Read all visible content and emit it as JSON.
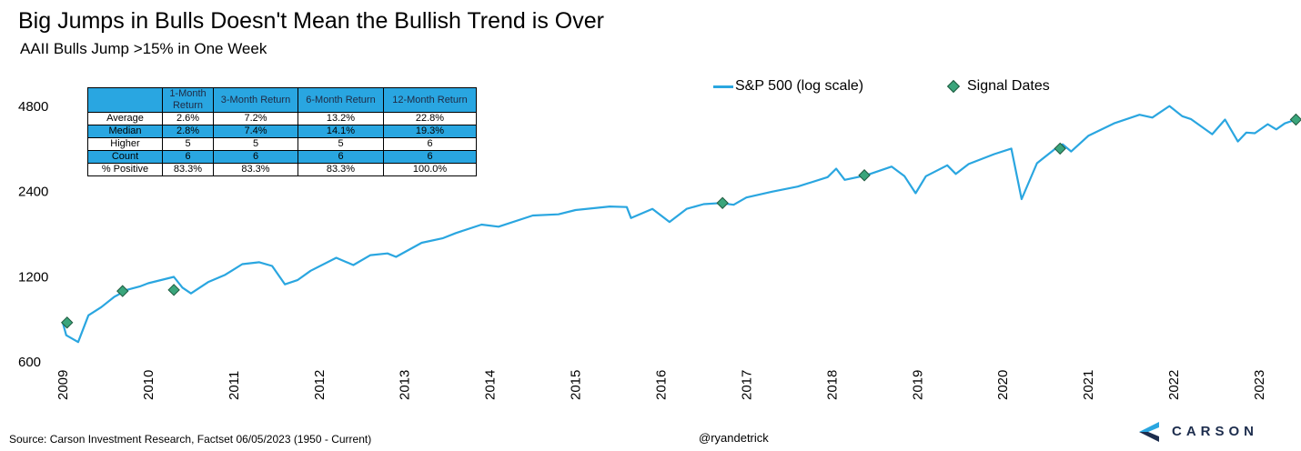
{
  "header": {
    "title": "Big Jumps in Bulls Doesn't Mean the Bullish Trend is Over",
    "subtitle": "AAII Bulls Jump >15% in One Week"
  },
  "legend": {
    "line_label": "S&P 500 (log scale)",
    "marker_label": "Signal Dates"
  },
  "stats_table": {
    "columns": [
      "",
      "1-Month Return",
      "3-Month Return",
      "6-Month Return",
      "12-Month Return"
    ],
    "rows": [
      {
        "label": "Average",
        "values": [
          "2.6%",
          "7.2%",
          "13.2%",
          "22.8%"
        ]
      },
      {
        "label": "Median",
        "values": [
          "2.8%",
          "7.4%",
          "14.1%",
          "19.3%"
        ]
      },
      {
        "label": "Higher",
        "values": [
          "5",
          "5",
          "5",
          "6"
        ]
      },
      {
        "label": "Count",
        "values": [
          "6",
          "6",
          "6",
          "6"
        ]
      },
      {
        "label": "% Positive",
        "values": [
          "83.3%",
          "83.3%",
          "83.3%",
          "100.0%"
        ]
      }
    ]
  },
  "footer": {
    "source": "Source: Carson Investment Research, Factset 06/05/2023 (1950 - Current)",
    "handle": "@ryandetrick",
    "logo_text": "CARSON"
  },
  "colors": {
    "line": "#2aa6e0",
    "marker": "#3aa57b",
    "table_header": "#29a6e1",
    "logo": "#1d2d4d"
  },
  "chart_data": {
    "type": "line",
    "y_scale": "log",
    "ylim": [
      600,
      5000
    ],
    "y_ticks": [
      4800,
      2400,
      1200,
      600
    ],
    "x_ticks": [
      "2009",
      "2010",
      "2011",
      "2012",
      "2013",
      "2014",
      "2015",
      "2016",
      "2017",
      "2018",
      "2019",
      "2020",
      "2021",
      "2022",
      "2023"
    ],
    "xlim": [
      2009.0,
      2023.5
    ],
    "series": [
      {
        "name": "S&P 500 (log scale)",
        "points": [
          [
            2009.0,
            820
          ],
          [
            2009.04,
            740
          ],
          [
            2009.18,
            700
          ],
          [
            2009.3,
            870
          ],
          [
            2009.45,
            930
          ],
          [
            2009.6,
            1010
          ],
          [
            2009.75,
            1070
          ],
          [
            2009.9,
            1100
          ],
          [
            2010.0,
            1130
          ],
          [
            2010.3,
            1190
          ],
          [
            2010.4,
            1090
          ],
          [
            2010.5,
            1040
          ],
          [
            2010.7,
            1140
          ],
          [
            2010.9,
            1210
          ],
          [
            2011.1,
            1320
          ],
          [
            2011.3,
            1340
          ],
          [
            2011.45,
            1300
          ],
          [
            2011.6,
            1120
          ],
          [
            2011.75,
            1160
          ],
          [
            2011.9,
            1250
          ],
          [
            2012.2,
            1390
          ],
          [
            2012.4,
            1310
          ],
          [
            2012.6,
            1420
          ],
          [
            2012.8,
            1440
          ],
          [
            2012.9,
            1400
          ],
          [
            2013.2,
            1570
          ],
          [
            2013.45,
            1630
          ],
          [
            2013.6,
            1700
          ],
          [
            2013.9,
            1820
          ],
          [
            2014.1,
            1790
          ],
          [
            2014.5,
            1960
          ],
          [
            2014.8,
            1980
          ],
          [
            2015.0,
            2050
          ],
          [
            2015.4,
            2110
          ],
          [
            2015.6,
            2100
          ],
          [
            2015.65,
            1920
          ],
          [
            2015.9,
            2070
          ],
          [
            2016.1,
            1860
          ],
          [
            2016.3,
            2070
          ],
          [
            2016.5,
            2150
          ],
          [
            2016.7,
            2170
          ],
          [
            2016.85,
            2140
          ],
          [
            2017.0,
            2270
          ],
          [
            2017.3,
            2380
          ],
          [
            2017.6,
            2480
          ],
          [
            2017.95,
            2680
          ],
          [
            2018.05,
            2870
          ],
          [
            2018.15,
            2620
          ],
          [
            2018.4,
            2720
          ],
          [
            2018.7,
            2920
          ],
          [
            2018.85,
            2700
          ],
          [
            2018.98,
            2350
          ],
          [
            2019.1,
            2700
          ],
          [
            2019.35,
            2950
          ],
          [
            2019.45,
            2750
          ],
          [
            2019.6,
            2980
          ],
          [
            2019.9,
            3230
          ],
          [
            2020.1,
            3380
          ],
          [
            2020.22,
            2240
          ],
          [
            2020.4,
            3000
          ],
          [
            2020.6,
            3350
          ],
          [
            2020.7,
            3500
          ],
          [
            2020.8,
            3300
          ],
          [
            2021.0,
            3750
          ],
          [
            2021.3,
            4150
          ],
          [
            2021.6,
            4450
          ],
          [
            2021.75,
            4350
          ],
          [
            2021.95,
            4780
          ],
          [
            2022.1,
            4400
          ],
          [
            2022.2,
            4300
          ],
          [
            2022.45,
            3800
          ],
          [
            2022.6,
            4280
          ],
          [
            2022.75,
            3580
          ],
          [
            2022.85,
            3850
          ],
          [
            2022.95,
            3830
          ],
          [
            2023.1,
            4120
          ],
          [
            2023.2,
            3950
          ],
          [
            2023.3,
            4150
          ],
          [
            2023.43,
            4280
          ]
        ]
      },
      {
        "name": "Signal Dates",
        "points": [
          [
            2009.05,
            820
          ],
          [
            2009.7,
            1060
          ],
          [
            2010.3,
            1070
          ],
          [
            2016.72,
            2170
          ],
          [
            2018.38,
            2720
          ],
          [
            2020.67,
            3380
          ],
          [
            2023.43,
            4280
          ]
        ]
      }
    ]
  }
}
